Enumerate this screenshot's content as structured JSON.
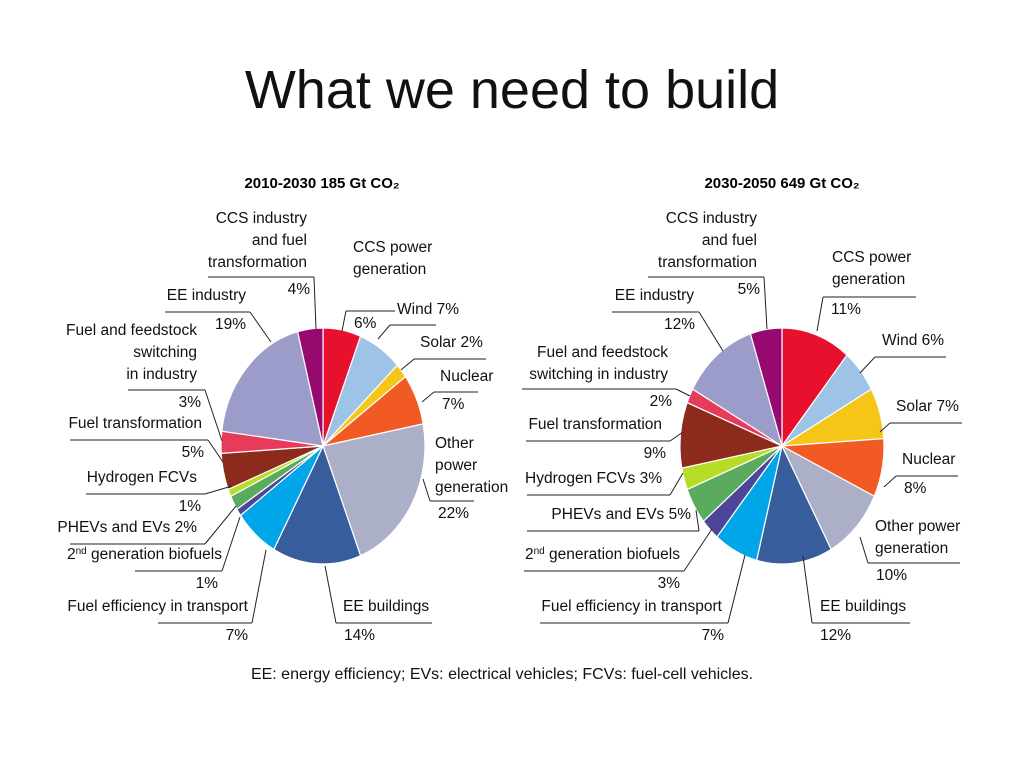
{
  "slide": {
    "title": "What we need to build",
    "footnote": "EE: energy efficiency; EVs: electrical vehicles; FCVs: fuel-cell vehicles."
  },
  "chart_data": [
    {
      "type": "pie",
      "title": "2010-2030 185 Gt CO₂",
      "unit": "%",
      "start": "12 o'clock",
      "direction": "clockwise",
      "slices": [
        {
          "label": [
            "CCS power",
            "generation"
          ],
          "value_label": "6%",
          "value": 6,
          "color": "#e8112d"
        },
        {
          "label": [
            "Wind 7%"
          ],
          "value_label": "",
          "value": 7,
          "color": "#9dc3e6"
        },
        {
          "label": [
            "Solar 2%"
          ],
          "value_label": "",
          "value": 2,
          "color": "#f5c518"
        },
        {
          "label": [
            "Nuclear"
          ],
          "value_label": "7%",
          "value": 7,
          "color": "#f15a22"
        },
        {
          "label": [
            "Other",
            "power",
            "generation"
          ],
          "value_label": "22%",
          "value": 22,
          "color": "#abb0c8"
        },
        {
          "label": [
            "EE buildings"
          ],
          "value_label": "14%",
          "value": 14,
          "color": "#385d9c"
        },
        {
          "label": [
            "Fuel efficiency in transport"
          ],
          "value_label": "7%",
          "value": 7,
          "color": "#00a6e8"
        },
        {
          "label": [
            "2nd generation biofuels"
          ],
          "value_label": "1%",
          "value": 1,
          "color": "#4d4597"
        },
        {
          "label": [
            "PHEVs and EVs 2%"
          ],
          "value_label": "",
          "value": 2,
          "color": "#5bab5f"
        },
        {
          "label": [
            "Hydrogen FCVs"
          ],
          "value_label": "1%",
          "value": 1,
          "color": "#b6dc26"
        },
        {
          "label": [
            "Fuel transformation"
          ],
          "value_label": "5%",
          "value": 5,
          "color": "#8c2a1c"
        },
        {
          "label": [
            "Fuel and feedstock",
            "switching",
            "in industry"
          ],
          "value_label": "3%",
          "value": 3,
          "color": "#e83a5a"
        },
        {
          "label": [
            "EE industry"
          ],
          "value_label": "19%",
          "value": 19,
          "color": "#9b9cc9"
        },
        {
          "label": [
            "CCS industry",
            "and fuel",
            "transformation"
          ],
          "value_label": "4%",
          "value": 4,
          "color": "#96096f"
        }
      ]
    },
    {
      "type": "pie",
      "title": "2030-2050 649 Gt CO₂",
      "unit": "%",
      "start": "12 o'clock",
      "direction": "clockwise",
      "slices": [
        {
          "label": [
            "CCS power",
            "generation"
          ],
          "value_label": "11%",
          "value": 11,
          "color": "#e8112d"
        },
        {
          "label": [
            "Wind 6%"
          ],
          "value_label": "",
          "value": 6,
          "color": "#9dc3e6"
        },
        {
          "label": [
            "Solar 7%"
          ],
          "value_label": "",
          "value": 7,
          "color": "#f5c518"
        },
        {
          "label": [
            "Nuclear"
          ],
          "value_label": "8%",
          "value": 8,
          "color": "#f15a22"
        },
        {
          "label": [
            "Other power",
            "generation"
          ],
          "value_label": "10%",
          "value": 10,
          "color": "#abb0c8"
        },
        {
          "label": [
            "EE buildings"
          ],
          "value_label": "12%",
          "value": 12,
          "color": "#385d9c"
        },
        {
          "label": [
            "Fuel efficiency in transport"
          ],
          "value_label": "7%",
          "value": 7,
          "color": "#00a6e8"
        },
        {
          "label": [
            "2nd generation biofuels"
          ],
          "value_label": "3%",
          "value": 3,
          "color": "#4d4597"
        },
        {
          "label": [
            "PHEVs and EVs 5%"
          ],
          "value_label": "",
          "value": 5,
          "color": "#5bab5f"
        },
        {
          "label": [
            "Hydrogen FCVs 3%"
          ],
          "value_label": "",
          "value": 3,
          "color": "#b6dc26"
        },
        {
          "label": [
            "Fuel transformation"
          ],
          "value_label": "9%",
          "value": 9,
          "color": "#8c2a1c"
        },
        {
          "label": [
            "Fuel and feedstock",
            "switching in industry"
          ],
          "value_label": "2%",
          "value": 2,
          "color": "#e83a5a"
        },
        {
          "label": [
            "EE industry"
          ],
          "value_label": "12%",
          "value": 12,
          "color": "#9b9cc9"
        },
        {
          "label": [
            "CCS industry",
            "and fuel",
            "transformation"
          ],
          "value_label": "5%",
          "value": 5,
          "color": "#96096f"
        }
      ]
    }
  ]
}
